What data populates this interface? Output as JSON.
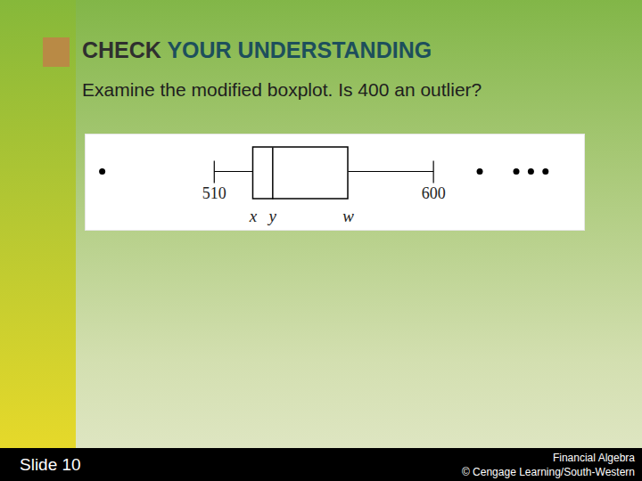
{
  "title": [
    "CHECK",
    "YOUR UNDERSTANDING"
  ],
  "text": "Examine the modified boxplot. Is 400 an outlier?",
  "footer": {
    "slide": "Slide 10",
    "source": "Financial Algebra",
    "copyright": "© Cengage Learning/South-Western"
  },
  "chart_data": {
    "type": "boxplot",
    "xlim": [
      457,
      662
    ],
    "tick_labels": false,
    "whisker_low": {
      "value": 510,
      "label": "510"
    },
    "q1": {
      "value": 526,
      "label": "x"
    },
    "median": {
      "value": 534,
      "label": "y"
    },
    "q3": {
      "value": 565,
      "label": "w"
    },
    "whisker_high": {
      "value": 600,
      "label": "600"
    },
    "outliers": [
      464,
      619,
      634,
      640,
      646
    ],
    "color": "#000000"
  }
}
